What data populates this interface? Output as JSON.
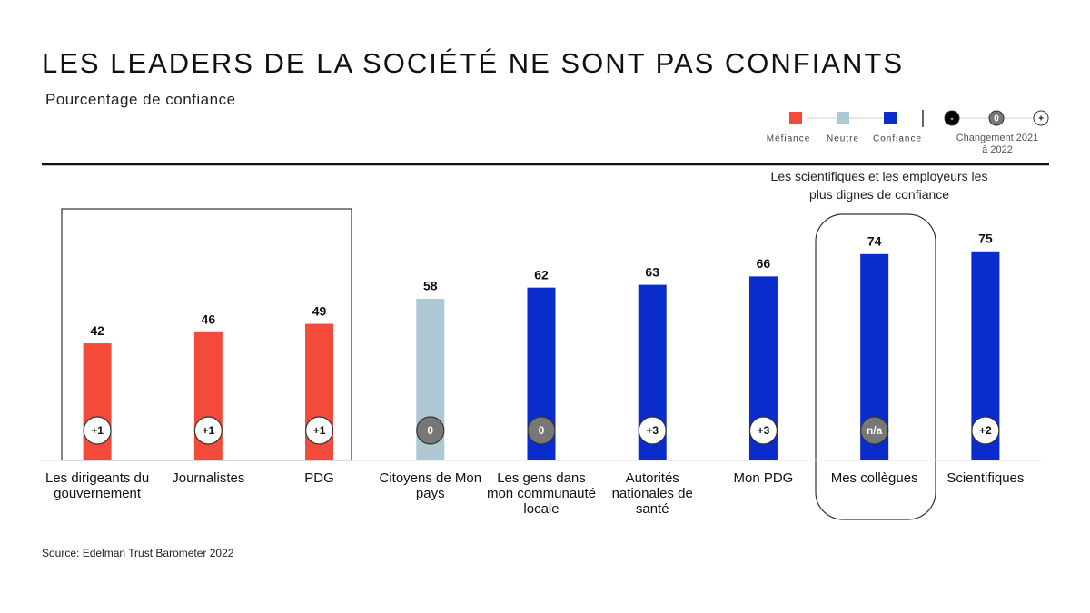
{
  "chart_data": {
    "type": "bar",
    "title": "LES LEADERS DE LA SOCIÉTÉ NE SONT PAS CONFIANTS",
    "subtitle": "Pourcentage de confiance",
    "categories": [
      "Les dirigeants du gouvernement",
      "Journalistes",
      "PDG",
      "Citoyens de Mon pays",
      "Les gens dans mon communauté locale",
      "Autorités nationales de santé",
      "Mon PDG",
      "Mes collègues",
      "Scientifiques"
    ],
    "values": [
      42,
      46,
      49,
      58,
      62,
      63,
      66,
      74,
      75
    ],
    "colors": [
      "#f44a3a",
      "#f44a3a",
      "#f44a3a",
      "#aec8d4",
      "#0a2ccc",
      "#0a2ccc",
      "#0a2ccc",
      "#0a2ccc",
      "#0a2ccc"
    ],
    "changes": [
      "+1",
      "+1",
      "+1",
      "0",
      "0",
      "+3",
      "+3",
      "n/a",
      "+2"
    ],
    "change_fills": [
      "#ffffff",
      "#ffffff",
      "#ffffff",
      "#777777",
      "#777777",
      "#ffffff",
      "#ffffff",
      "#777777",
      "#ffffff"
    ],
    "ylim": [
      0,
      100
    ],
    "legend": {
      "items": [
        {
          "name": "Méfiance",
          "color": "#f44a3a"
        },
        {
          "name": "Neutre",
          "color": "#aec8d4"
        },
        {
          "name": "Confiance",
          "color": "#0a2ccc"
        }
      ],
      "change_symbols": [
        "-",
        "0",
        "+"
      ],
      "change_label": "Changement 2021 à 2022"
    },
    "annotation": "Les scientifiques et les employeurs les plus dignes de confiance",
    "source": "Source: Edelman Trust Barometer 2022"
  }
}
